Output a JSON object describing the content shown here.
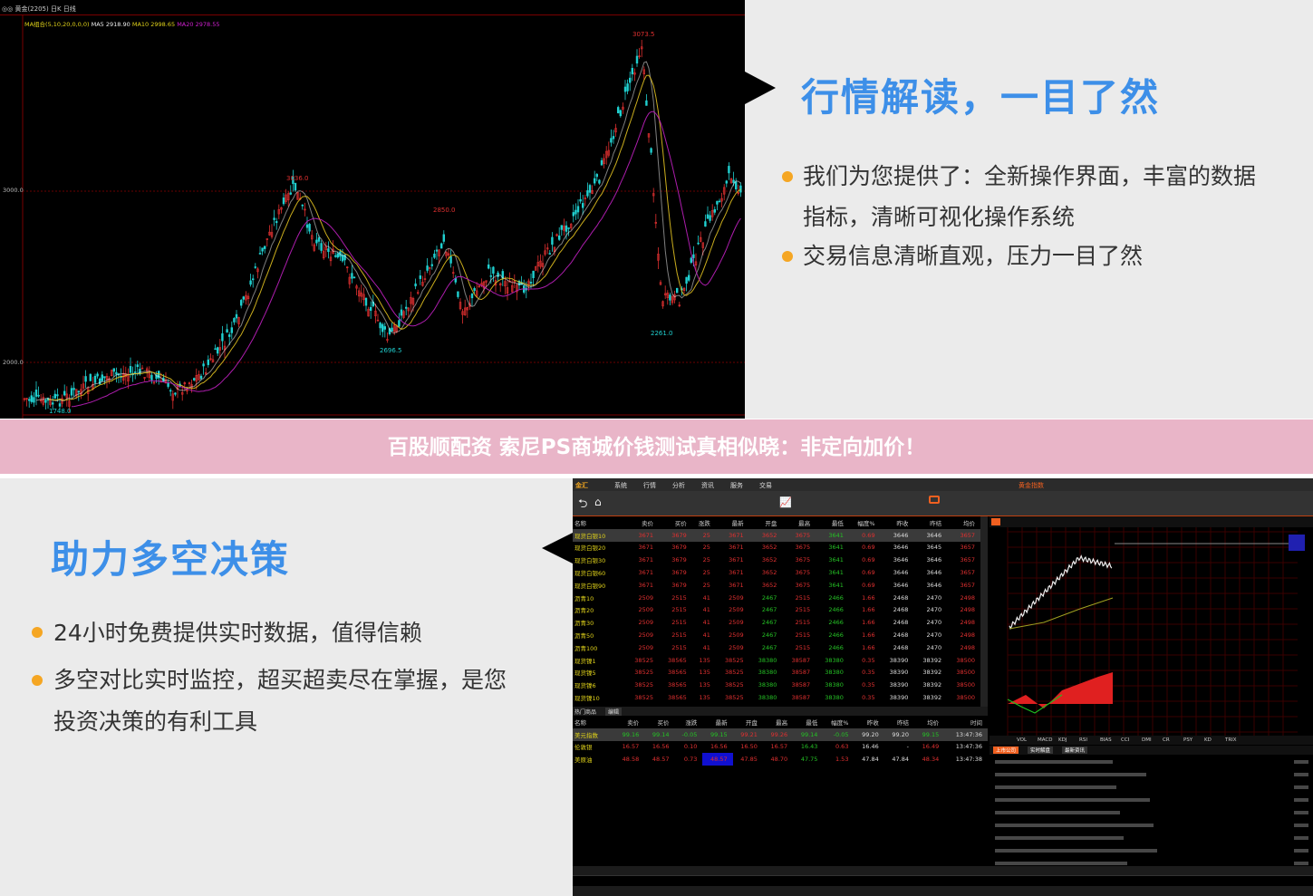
{
  "top_chart": {
    "header": "◎◎ 黄金(2205) 日K 日线",
    "ma_legend": {
      "label": "MA组合(5,10,20,0,0,0)",
      "ma5": "MA5 2918.90",
      "ma10": "MA10 2998.65",
      "ma20": "MA20 2978.55"
    },
    "axis": [
      "3000.0",
      "2000.0"
    ],
    "annotations": {
      "high": "3073.5",
      "peak1": "3036.0",
      "peak2": "2850.0",
      "low1": "2696.5",
      "low2": "2261.0",
      "start_low": "1748.0"
    },
    "colors": {
      "up": "#e03030",
      "down": "#20d0d0",
      "ma5": "#ffffff",
      "ma10": "#e0c020",
      "ma20": "#c020c0",
      "grid": "#6a0000"
    }
  },
  "panel_top": {
    "title": "行情解读，一目了然",
    "bullets": [
      "我们为您提供了：全新操作界面，丰富的数据",
      "指标，清晰可视化操作系统",
      "交易信息清晰直观，压力一目了然"
    ]
  },
  "banner": {
    "text": "百股顺配资 索尼PS商城价钱测试真相似晓：非定向加价！"
  },
  "panel_bottom": {
    "title": "助力多空决策",
    "bullets": [
      "24小时免费提供实时数据，值得信赖",
      "多空对比实时监控，超买超卖尽在掌握，是您",
      "投资决策的有利工具"
    ]
  },
  "app": {
    "brand": "金汇",
    "menu": [
      "系统",
      "行情",
      "分析",
      "资讯",
      "服务",
      "交易"
    ],
    "right_title": "黄金指数",
    "table": {
      "headers": [
        "名称",
        "卖价",
        "买价",
        "涨跌",
        "最新",
        "开盘",
        "最高",
        "最低",
        "幅度%",
        "昨收",
        "昨结",
        "均价"
      ],
      "rows": [
        [
          "现货白银10",
          "3671",
          "3679",
          "25",
          "3671",
          "3652",
          "3675",
          "3641",
          "0.69",
          "3646",
          "3646",
          "3657"
        ],
        [
          "现货白银20",
          "3671",
          "3679",
          "25",
          "3671",
          "3652",
          "3675",
          "3641",
          "0.69",
          "3646",
          "3645",
          "3657"
        ],
        [
          "现货白银30",
          "3671",
          "3679",
          "25",
          "3671",
          "3652",
          "3675",
          "3641",
          "0.69",
          "3646",
          "3646",
          "3657"
        ],
        [
          "现货白银60",
          "3671",
          "3679",
          "25",
          "3671",
          "3652",
          "3675",
          "3641",
          "0.69",
          "3646",
          "3646",
          "3657"
        ],
        [
          "现货白银90",
          "3671",
          "3679",
          "25",
          "3671",
          "3652",
          "3675",
          "3641",
          "0.69",
          "3646",
          "3646",
          "3657"
        ],
        [
          "沥青10",
          "2509",
          "2515",
          "41",
          "2509",
          "2467",
          "2515",
          "2466",
          "1.66",
          "2468",
          "2470",
          "2498"
        ],
        [
          "沥青20",
          "2509",
          "2515",
          "41",
          "2509",
          "2467",
          "2515",
          "2466",
          "1.66",
          "2468",
          "2470",
          "2498"
        ],
        [
          "沥青30",
          "2509",
          "2515",
          "41",
          "2509",
          "2467",
          "2515",
          "2466",
          "1.66",
          "2468",
          "2470",
          "2498"
        ],
        [
          "沥青50",
          "2509",
          "2515",
          "41",
          "2509",
          "2467",
          "2515",
          "2466",
          "1.66",
          "2468",
          "2470",
          "2498"
        ],
        [
          "沥青100",
          "2509",
          "2515",
          "41",
          "2509",
          "2467",
          "2515",
          "2466",
          "1.66",
          "2468",
          "2470",
          "2498"
        ],
        [
          "现货镍1",
          "38525",
          "38565",
          "135",
          "38525",
          "38380",
          "38587",
          "38380",
          "0.35",
          "38390",
          "38392",
          "38500"
        ],
        [
          "现货镍5",
          "38525",
          "38565",
          "135",
          "38525",
          "38380",
          "38587",
          "38380",
          "0.35",
          "38390",
          "38392",
          "38500"
        ],
        [
          "现货镍6",
          "38525",
          "38565",
          "135",
          "38525",
          "38380",
          "38587",
          "38380",
          "0.35",
          "38390",
          "38392",
          "38500"
        ],
        [
          "现货镍10",
          "38525",
          "38565",
          "135",
          "38525",
          "38380",
          "38587",
          "38380",
          "0.35",
          "38390",
          "38392",
          "38500"
        ]
      ]
    },
    "hot_tab": "热门商品",
    "hot_edit": "编辑",
    "hot_table": {
      "headers": [
        "名称",
        "卖价",
        "买价",
        "涨跌",
        "最新",
        "开盘",
        "最高",
        "最低",
        "幅度%",
        "昨收",
        "昨结",
        "均价",
        "时间"
      ],
      "rows": [
        [
          "美元指数",
          "99.16",
          "99.14",
          "-0.05",
          "99.15",
          "99.21",
          "99.26",
          "99.14",
          "-0.05",
          "99.20",
          "99.20",
          "99.15",
          "13:47:36"
        ],
        [
          "伦敦银",
          "16.57",
          "16.56",
          "0.10",
          "16.56",
          "16.50",
          "16.57",
          "16.43",
          "0.63",
          "16.46",
          "-",
          "16.49",
          "13:47:36"
        ],
        [
          "美原油",
          "48.58",
          "48.57",
          "0.73",
          "48.57",
          "47.85",
          "48.70",
          "47.75",
          "1.53",
          "47.84",
          "47.84",
          "48.34",
          "13:47:38"
        ]
      ]
    },
    "indicator_tabs": [
      "VOL",
      "MACD",
      "KDJ",
      "RSI",
      "BIAS",
      "CCI",
      "DMI",
      "CR",
      "PSY",
      "KD",
      "TRIX"
    ],
    "news_tabs": [
      "上市公司",
      "实时解盘",
      "最新资讯"
    ]
  }
}
